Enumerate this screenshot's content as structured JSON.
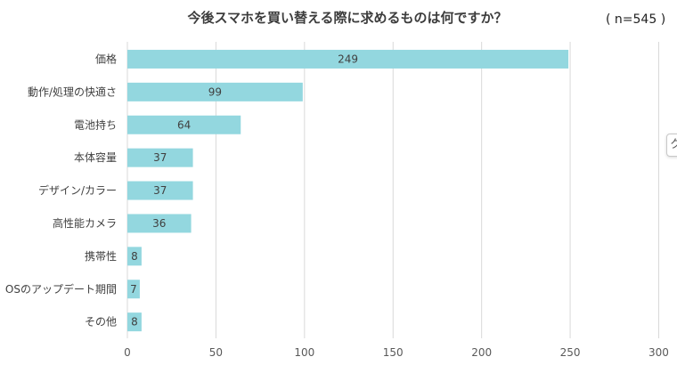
{
  "chart_data": {
    "type": "bar",
    "orientation": "horizontal",
    "title": "今後スマホを買い替える際に求めるものは何ですか？",
    "note": "( n=545 )",
    "categories": [
      "価格",
      "動作/処理の快適さ",
      "電池持ち",
      "本体容量",
      "デザイン/カラー",
      "高性能カメラ",
      "携帯性",
      "OSのアップデート期間",
      "その他"
    ],
    "values": [
      249,
      99,
      64,
      37,
      37,
      36,
      8,
      7,
      8
    ],
    "x_ticks": [
      "0",
      "50",
      "100",
      "150",
      "200",
      "250",
      "300"
    ],
    "xlim": [
      0,
      300
    ],
    "grid": true,
    "legend": "none",
    "bar_color": "#93d7df",
    "grid_color": "#d9d9d9"
  },
  "edge_tab_glyph": "ク"
}
